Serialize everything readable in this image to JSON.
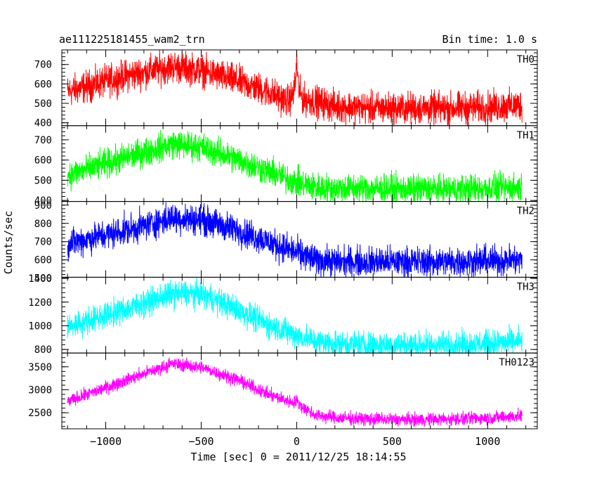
{
  "chart_data": {
    "type": "line",
    "title": "ae111225181455_wam2_trn",
    "bin_time_label": "Bin time: 1.0 s",
    "xlabel": "Time [sec] 0 = 2011/12/25 18:14:55",
    "ylabel": "Counts/sec",
    "xlim": [
      -1230,
      1260
    ],
    "x_ticks": [
      -1000,
      -500,
      0,
      500,
      1000
    ],
    "x_tick_labels": [
      "−1000",
      "−500",
      "0",
      "500",
      "1000"
    ],
    "x_range": [
      -1200,
      1180
    ],
    "bin_width": 1.0,
    "grid": false,
    "panels": [
      {
        "name": "TH0",
        "color": "#ff0000",
        "ylim": [
          385,
          775
        ],
        "y_ticks": [
          400,
          500,
          600,
          700
        ],
        "y_tick_labels": [
          "400",
          "500",
          "600",
          "700"
        ],
        "shape": [
          [
            -1200,
            560
          ],
          [
            -900,
            640
          ],
          [
            -650,
            690
          ],
          [
            -500,
            670
          ],
          [
            -300,
            610
          ],
          [
            -150,
            560
          ],
          [
            -50,
            510
          ],
          [
            0,
            560
          ],
          [
            40,
            520
          ],
          [
            100,
            510
          ],
          [
            200,
            485
          ],
          [
            400,
            475
          ],
          [
            600,
            475
          ],
          [
            800,
            475
          ],
          [
            1000,
            480
          ],
          [
            1180,
            490
          ]
        ],
        "noise": 40,
        "spike": {
          "x": 0,
          "peak": 740
        }
      },
      {
        "name": "TH1",
        "color": "#00ff00",
        "ylim": [
          395,
          770
        ],
        "y_ticks": [
          400,
          500,
          600,
          700
        ],
        "y_tick_labels": [
          "400",
          "500",
          "600",
          "700"
        ],
        "shape": [
          [
            -1200,
            525
          ],
          [
            -900,
            610
          ],
          [
            -650,
            680
          ],
          [
            -500,
            665
          ],
          [
            -300,
            600
          ],
          [
            -150,
            545
          ],
          [
            0,
            490
          ],
          [
            100,
            465
          ],
          [
            200,
            460
          ],
          [
            400,
            460
          ],
          [
            600,
            455
          ],
          [
            800,
            455
          ],
          [
            1000,
            460
          ],
          [
            1180,
            465
          ]
        ],
        "noise": 35
      },
      {
        "name": "TH2",
        "color": "#0000ff",
        "ylim": [
          505,
          920
        ],
        "y_ticks": [
          500,
          600,
          700,
          800,
          900
        ],
        "y_tick_labels": [
          "500",
          "600",
          "700",
          "800",
          "900"
        ],
        "shape": [
          [
            -1200,
            690
          ],
          [
            -900,
            760
          ],
          [
            -650,
            830
          ],
          [
            -500,
            820
          ],
          [
            -300,
            760
          ],
          [
            -150,
            700
          ],
          [
            0,
            640
          ],
          [
            100,
            600
          ],
          [
            200,
            590
          ],
          [
            400,
            590
          ],
          [
            600,
            590
          ],
          [
            800,
            590
          ],
          [
            1000,
            595
          ],
          [
            1180,
            600
          ]
        ],
        "noise": 40
      },
      {
        "name": "TH3",
        "color": "#00ffff",
        "ylim": [
          770,
          1410
        ],
        "y_ticks": [
          800,
          1000,
          1200,
          1400
        ],
        "y_tick_labels": [
          "800",
          "1000",
          "1200",
          "1400"
        ],
        "shape": [
          [
            -1200,
            990
          ],
          [
            -900,
            1140
          ],
          [
            -650,
            1270
          ],
          [
            -500,
            1270
          ],
          [
            -300,
            1130
          ],
          [
            -150,
            1010
          ],
          [
            0,
            920
          ],
          [
            100,
            870
          ],
          [
            200,
            850
          ],
          [
            400,
            840
          ],
          [
            600,
            840
          ],
          [
            800,
            840
          ],
          [
            1000,
            850
          ],
          [
            1180,
            870
          ]
        ],
        "noise": 55
      },
      {
        "name": "TH0123",
        "color": "#ff00ff",
        "ylim": [
          2150,
          3800
        ],
        "y_ticks": [
          2500,
          3000,
          3500
        ],
        "y_tick_labels": [
          "2500",
          "3000",
          "3500"
        ],
        "shape": [
          [
            -1200,
            2740
          ],
          [
            -900,
            3200
          ],
          [
            -650,
            3570
          ],
          [
            -500,
            3490
          ],
          [
            -300,
            3200
          ],
          [
            -150,
            2900
          ],
          [
            0,
            2700
          ],
          [
            100,
            2450
          ],
          [
            200,
            2390
          ],
          [
            400,
            2360
          ],
          [
            600,
            2350
          ],
          [
            800,
            2360
          ],
          [
            1000,
            2390
          ],
          [
            1180,
            2430
          ]
        ],
        "noise": 70,
        "spike": {
          "x": 0,
          "peak": 2780
        }
      }
    ]
  }
}
